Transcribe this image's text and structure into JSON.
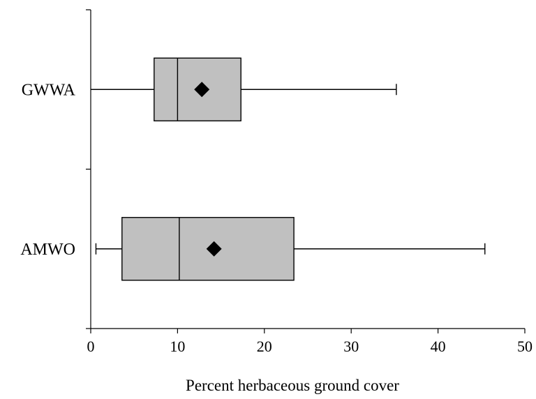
{
  "chart_data": {
    "type": "boxplot",
    "orientation": "horizontal",
    "title": "",
    "xlabel": "Percent herbaceous ground cover",
    "ylabel": "",
    "xlim": [
      0,
      50
    ],
    "xticks": [
      "0",
      "10",
      "20",
      "30",
      "40",
      "50"
    ],
    "grid": false,
    "legend": "none",
    "box_color": "#c0c0c0",
    "mean_marker": "diamond",
    "categories": [
      "GWWA",
      "AMWO"
    ],
    "series": [
      {
        "label": "GWWA",
        "min": 0,
        "q1": 7.3,
        "median": 10,
        "q3": 17.3,
        "max": 35.2,
        "mean": 12.8
      },
      {
        "label": "AMWO",
        "min": 0.6,
        "q1": 3.6,
        "median": 10.2,
        "q3": 23.4,
        "max": 45.4,
        "mean": 14.2
      }
    ]
  }
}
